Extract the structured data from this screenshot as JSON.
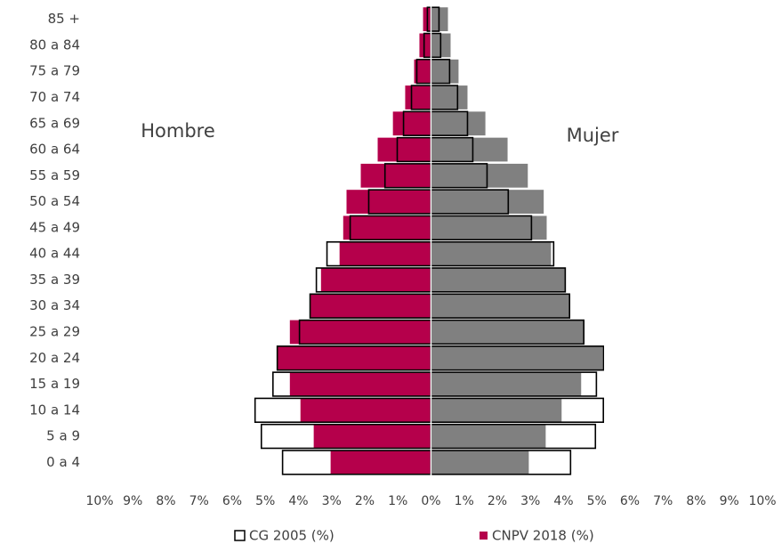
{
  "chart_data": {
    "type": "pyramid",
    "categories": [
      "0 a 4",
      "5 a 9",
      "10 a 14",
      "15 a 19",
      "20 a 24",
      "25 a 29",
      "30 a 34",
      "35 a 39",
      "40 a 44",
      "45 a 49",
      "50 a 54",
      "55 a 59",
      "60 a 64",
      "65 a 69",
      "70 a 74",
      "75 a 79",
      "80 a 84",
      "85 +"
    ],
    "annotations": [
      "Hombre",
      "Mujer"
    ],
    "series": [
      {
        "name": "CNPV 2018 (%)",
        "style": "filled",
        "colors": [
          "#b5004b",
          "#808080"
        ],
        "male": [
          -3.03,
          -3.54,
          -3.94,
          -4.26,
          -4.64,
          -4.26,
          -3.65,
          -3.32,
          -2.76,
          -2.65,
          -2.55,
          -2.12,
          -1.61,
          -1.15,
          -0.78,
          -0.51,
          -0.35,
          -0.24
        ],
        "female": [
          2.95,
          3.46,
          3.94,
          4.53,
          5.17,
          4.61,
          4.18,
          4.05,
          3.62,
          3.49,
          3.4,
          2.92,
          2.31,
          1.64,
          1.1,
          0.83,
          0.59,
          0.51
        ]
      },
      {
        "name": "CG 2005 (%)",
        "style": "outline",
        "colors": [
          "#000000",
          "#000000"
        ],
        "male": [
          -4.48,
          -5.12,
          -5.31,
          -4.77,
          -4.64,
          -3.97,
          -3.65,
          -3.46,
          -3.14,
          -2.44,
          -1.88,
          -1.39,
          -1.02,
          -0.83,
          -0.59,
          -0.43,
          -0.21,
          -0.11
        ],
        "female": [
          4.21,
          4.96,
          5.2,
          4.99,
          5.2,
          4.61,
          4.18,
          4.05,
          3.7,
          3.03,
          2.33,
          1.69,
          1.26,
          1.1,
          0.8,
          0.56,
          0.29,
          0.24
        ]
      }
    ],
    "xlim": [
      -10,
      10
    ],
    "xticks": [
      {
        "value": -10,
        "label": "10%"
      },
      {
        "value": -9,
        "label": "9%"
      },
      {
        "value": -8,
        "label": "8%"
      },
      {
        "value": -7,
        "label": "7%"
      },
      {
        "value": -6,
        "label": "6%"
      },
      {
        "value": -5,
        "label": "5%"
      },
      {
        "value": -4,
        "label": "4%"
      },
      {
        "value": -3,
        "label": "3%"
      },
      {
        "value": -2,
        "label": "2%"
      },
      {
        "value": -1,
        "label": "1%"
      },
      {
        "value": 0,
        "label": "0%"
      },
      {
        "value": 1,
        "label": "1%"
      },
      {
        "value": 2,
        "label": "2%"
      },
      {
        "value": 3,
        "label": "3%"
      },
      {
        "value": 4,
        "label": "4%"
      },
      {
        "value": 5,
        "label": "5%"
      },
      {
        "value": 6,
        "label": "6%"
      },
      {
        "value": 7,
        "label": "7%"
      },
      {
        "value": 8,
        "label": "8%"
      },
      {
        "value": 9,
        "label": "9%"
      },
      {
        "value": 10,
        "label": "10%"
      }
    ],
    "grid": false
  }
}
